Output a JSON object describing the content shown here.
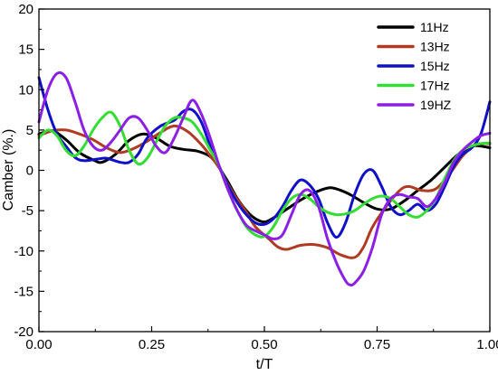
{
  "chart_data": {
    "type": "line",
    "title": "",
    "xlabel": "t/T",
    "ylabel": "Camber (%.)",
    "xlim": [
      0,
      1
    ],
    "ylim": [
      -20,
      20
    ],
    "x_ticks": [
      "0.00",
      "0.25",
      "0.50",
      "0.75",
      "1.00"
    ],
    "y_ticks": [
      "-20",
      "-15",
      "-10",
      "-5",
      "0",
      "5",
      "10",
      "15",
      "20"
    ],
    "grid": false,
    "legend_position": "top-right",
    "series": [
      {
        "name": "11Hz",
        "color": "#000000",
        "points": [
          [
            0.0,
            4.5
          ],
          [
            0.03,
            4.9
          ],
          [
            0.06,
            3.8
          ],
          [
            0.09,
            2.2
          ],
          [
            0.12,
            1.3
          ],
          [
            0.14,
            1.0
          ],
          [
            0.17,
            2.0
          ],
          [
            0.2,
            3.7
          ],
          [
            0.23,
            4.5
          ],
          [
            0.26,
            4.0
          ],
          [
            0.29,
            3.0
          ],
          [
            0.32,
            2.6
          ],
          [
            0.35,
            2.4
          ],
          [
            0.38,
            1.7
          ],
          [
            0.4,
            0.3
          ],
          [
            0.42,
            -1.5
          ],
          [
            0.44,
            -3.5
          ],
          [
            0.46,
            -5.0
          ],
          [
            0.48,
            -6.0
          ],
          [
            0.5,
            -6.4
          ],
          [
            0.52,
            -5.9
          ],
          [
            0.55,
            -4.8
          ],
          [
            0.58,
            -3.7
          ],
          [
            0.61,
            -2.8
          ],
          [
            0.64,
            -2.2
          ],
          [
            0.66,
            -2.3
          ],
          [
            0.69,
            -3.0
          ],
          [
            0.72,
            -4.0
          ],
          [
            0.75,
            -4.8
          ],
          [
            0.78,
            -4.8
          ],
          [
            0.81,
            -3.8
          ],
          [
            0.84,
            -2.5
          ],
          [
            0.87,
            -1.2
          ],
          [
            0.9,
            0.4
          ],
          [
            0.93,
            2.0
          ],
          [
            0.96,
            3.0
          ],
          [
            0.98,
            3.0
          ],
          [
            1.0,
            2.8
          ]
        ]
      },
      {
        "name": "13Hz",
        "color": "#B03A22",
        "points": [
          [
            0.0,
            4.3
          ],
          [
            0.03,
            4.9
          ],
          [
            0.06,
            5.0
          ],
          [
            0.09,
            4.5
          ],
          [
            0.12,
            3.8
          ],
          [
            0.15,
            2.8
          ],
          [
            0.18,
            2.2
          ],
          [
            0.21,
            2.7
          ],
          [
            0.24,
            3.6
          ],
          [
            0.27,
            4.7
          ],
          [
            0.3,
            5.5
          ],
          [
            0.33,
            4.8
          ],
          [
            0.36,
            3.2
          ],
          [
            0.38,
            1.8
          ],
          [
            0.4,
            0.3
          ],
          [
            0.42,
            -1.8
          ],
          [
            0.44,
            -3.6
          ],
          [
            0.46,
            -5.2
          ],
          [
            0.48,
            -7.0
          ],
          [
            0.51,
            -8.5
          ],
          [
            0.53,
            -9.5
          ],
          [
            0.55,
            -9.8
          ],
          [
            0.58,
            -9.3
          ],
          [
            0.61,
            -9.2
          ],
          [
            0.64,
            -9.6
          ],
          [
            0.67,
            -10.5
          ],
          [
            0.7,
            -10.8
          ],
          [
            0.72,
            -9.5
          ],
          [
            0.74,
            -7.0
          ],
          [
            0.77,
            -4.5
          ],
          [
            0.8,
            -2.5
          ],
          [
            0.82,
            -2.0
          ],
          [
            0.85,
            -2.5
          ],
          [
            0.88,
            -2.3
          ],
          [
            0.91,
            -0.5
          ],
          [
            0.94,
            1.8
          ],
          [
            0.97,
            3.2
          ],
          [
            1.0,
            3.3
          ]
        ]
      },
      {
        "name": "15Hz",
        "color": "#1010C8",
        "points": [
          [
            0.0,
            11.5
          ],
          [
            0.02,
            7.5
          ],
          [
            0.04,
            4.5
          ],
          [
            0.06,
            3.0
          ],
          [
            0.08,
            1.6
          ],
          [
            0.1,
            1.2
          ],
          [
            0.13,
            1.4
          ],
          [
            0.15,
            1.5
          ],
          [
            0.18,
            1.0
          ],
          [
            0.2,
            1.0
          ],
          [
            0.22,
            2.0
          ],
          [
            0.24,
            4.0
          ],
          [
            0.27,
            5.5
          ],
          [
            0.3,
            6.2
          ],
          [
            0.32,
            7.3
          ],
          [
            0.34,
            7.5
          ],
          [
            0.36,
            6.0
          ],
          [
            0.38,
            3.0
          ],
          [
            0.4,
            0.5
          ],
          [
            0.42,
            -2.0
          ],
          [
            0.44,
            -4.0
          ],
          [
            0.46,
            -5.5
          ],
          [
            0.48,
            -6.5
          ],
          [
            0.5,
            -6.7
          ],
          [
            0.52,
            -6.0
          ],
          [
            0.54,
            -4.5
          ],
          [
            0.56,
            -2.5
          ],
          [
            0.58,
            -1.2
          ],
          [
            0.6,
            -1.8
          ],
          [
            0.62,
            -3.5
          ],
          [
            0.64,
            -6.5
          ],
          [
            0.66,
            -8.3
          ],
          [
            0.68,
            -6.5
          ],
          [
            0.7,
            -3.0
          ],
          [
            0.72,
            -0.5
          ],
          [
            0.74,
            0.0
          ],
          [
            0.76,
            -2.0
          ],
          [
            0.78,
            -4.5
          ],
          [
            0.8,
            -5.5
          ],
          [
            0.82,
            -5.0
          ],
          [
            0.84,
            -4.2
          ],
          [
            0.86,
            -5.0
          ],
          [
            0.88,
            -4.2
          ],
          [
            0.9,
            -2.0
          ],
          [
            0.92,
            0.5
          ],
          [
            0.94,
            2.0
          ],
          [
            0.96,
            2.8
          ],
          [
            0.98,
            4.5
          ],
          [
            1.0,
            8.5
          ]
        ]
      },
      {
        "name": "17Hz",
        "color": "#33DD33",
        "points": [
          [
            0.0,
            4.0
          ],
          [
            0.02,
            5.0
          ],
          [
            0.04,
            4.3
          ],
          [
            0.06,
            2.5
          ],
          [
            0.08,
            1.8
          ],
          [
            0.1,
            3.0
          ],
          [
            0.12,
            5.0
          ],
          [
            0.14,
            6.5
          ],
          [
            0.16,
            7.2
          ],
          [
            0.18,
            5.5
          ],
          [
            0.2,
            2.5
          ],
          [
            0.22,
            0.8
          ],
          [
            0.24,
            1.5
          ],
          [
            0.26,
            3.5
          ],
          [
            0.28,
            5.5
          ],
          [
            0.3,
            6.5
          ],
          [
            0.32,
            6.5
          ],
          [
            0.34,
            6.0
          ],
          [
            0.36,
            4.5
          ],
          [
            0.38,
            2.5
          ],
          [
            0.4,
            0.5
          ],
          [
            0.42,
            -2.5
          ],
          [
            0.44,
            -5.0
          ],
          [
            0.46,
            -7.0
          ],
          [
            0.48,
            -8.0
          ],
          [
            0.5,
            -8.2
          ],
          [
            0.52,
            -7.0
          ],
          [
            0.54,
            -5.0
          ],
          [
            0.56,
            -3.5
          ],
          [
            0.58,
            -3.0
          ],
          [
            0.6,
            -3.5
          ],
          [
            0.62,
            -4.5
          ],
          [
            0.64,
            -5.2
          ],
          [
            0.66,
            -5.5
          ],
          [
            0.68,
            -5.4
          ],
          [
            0.7,
            -5.0
          ],
          [
            0.72,
            -4.2
          ],
          [
            0.74,
            -3.5
          ],
          [
            0.76,
            -3.2
          ],
          [
            0.78,
            -3.5
          ],
          [
            0.8,
            -4.5
          ],
          [
            0.82,
            -5.5
          ],
          [
            0.84,
            -5.8
          ],
          [
            0.86,
            -5.0
          ],
          [
            0.88,
            -3.5
          ],
          [
            0.9,
            -1.0
          ],
          [
            0.92,
            1.2
          ],
          [
            0.94,
            2.5
          ],
          [
            0.97,
            3.2
          ],
          [
            1.0,
            3.4
          ]
        ]
      },
      {
        "name": "19HZ",
        "color": "#8C1FE6",
        "points": [
          [
            0.0,
            6.0
          ],
          [
            0.02,
            10.0
          ],
          [
            0.04,
            12.0
          ],
          [
            0.06,
            11.5
          ],
          [
            0.08,
            8.5
          ],
          [
            0.1,
            5.0
          ],
          [
            0.12,
            3.0
          ],
          [
            0.14,
            2.5
          ],
          [
            0.16,
            3.5
          ],
          [
            0.18,
            5.0
          ],
          [
            0.2,
            6.5
          ],
          [
            0.22,
            6.5
          ],
          [
            0.24,
            5.0
          ],
          [
            0.26,
            3.0
          ],
          [
            0.28,
            2.2
          ],
          [
            0.3,
            4.0
          ],
          [
            0.32,
            6.5
          ],
          [
            0.34,
            8.7
          ],
          [
            0.36,
            7.0
          ],
          [
            0.38,
            4.0
          ],
          [
            0.4,
            0.5
          ],
          [
            0.42,
            -2.5
          ],
          [
            0.44,
            -5.0
          ],
          [
            0.46,
            -6.8
          ],
          [
            0.48,
            -7.5
          ],
          [
            0.5,
            -8.0
          ],
          [
            0.52,
            -8.5
          ],
          [
            0.54,
            -8.0
          ],
          [
            0.56,
            -5.5
          ],
          [
            0.58,
            -3.0
          ],
          [
            0.6,
            -2.5
          ],
          [
            0.62,
            -4.5
          ],
          [
            0.64,
            -8.5
          ],
          [
            0.66,
            -11.5
          ],
          [
            0.68,
            -13.7
          ],
          [
            0.69,
            -14.2
          ],
          [
            0.7,
            -14.0
          ],
          [
            0.72,
            -12.5
          ],
          [
            0.74,
            -9.5
          ],
          [
            0.76,
            -5.5
          ],
          [
            0.78,
            -3.5
          ],
          [
            0.8,
            -3.0
          ],
          [
            0.82,
            -3.3
          ],
          [
            0.84,
            -3.5
          ],
          [
            0.86,
            -4.5
          ],
          [
            0.88,
            -3.5
          ],
          [
            0.9,
            -1.5
          ],
          [
            0.92,
            1.0
          ],
          [
            0.94,
            2.5
          ],
          [
            0.96,
            3.5
          ],
          [
            0.98,
            4.3
          ],
          [
            1.0,
            4.6
          ]
        ]
      }
    ]
  }
}
